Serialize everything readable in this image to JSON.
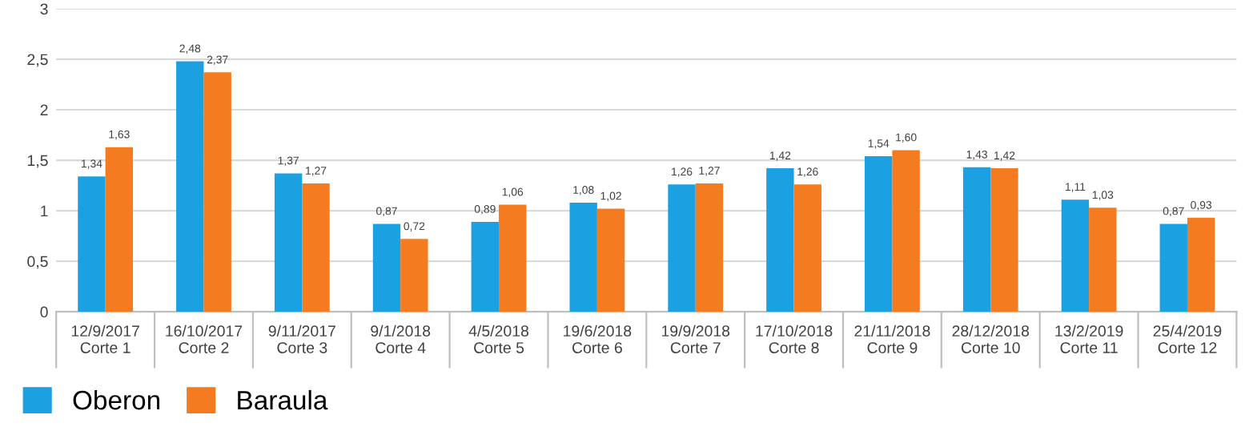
{
  "chart_data": {
    "type": "bar",
    "categories": [
      "12/9/2017\nCorte 1",
      "16/10/2017\nCorte 2",
      "9/11/2017\nCorte 3",
      "9/1/2018\nCorte 4",
      "4/5/2018\nCorte 5",
      "19/6/2018\nCorte 6",
      "19/9/2018\nCorte 7",
      "17/10/2018\nCorte 8",
      "21/11/2018\nCorte 9",
      "28/12/2018\nCorte 10",
      "13/2/2019\nCorte 11",
      "25/4/2019\nCorte 12"
    ],
    "series": [
      {
        "name": "Oberon",
        "color": "#1ba1e2",
        "values": [
          1.34,
          2.48,
          1.37,
          0.87,
          0.89,
          1.08,
          1.26,
          1.42,
          1.54,
          1.43,
          1.11,
          0.87
        ],
        "value_labels": [
          "1,34",
          "2,48",
          "1,37",
          "0,87",
          "0,89",
          "1,08",
          "1,26",
          "1,42",
          "1,54",
          "1,43",
          "1,11",
          "0,87"
        ]
      },
      {
        "name": "Baraula",
        "color": "#f47b20",
        "values": [
          1.63,
          2.37,
          1.27,
          0.72,
          1.06,
          1.02,
          1.27,
          1.26,
          1.6,
          1.42,
          1.03,
          0.93
        ],
        "value_labels": [
          "1,63",
          "2,37",
          "1,27",
          "0,72",
          "1,06",
          "1,02",
          "1,27",
          "1,26",
          "1,60",
          "1,42",
          "1,03",
          "0,93"
        ]
      }
    ],
    "ylim": [
      0,
      3
    ],
    "yticks": [
      0,
      {
        "value": 0.5,
        "label": "0,5"
      },
      1,
      {
        "value": 1.5,
        "label": "1,5"
      },
      2,
      {
        "value": 2.5,
        "label": "2,5"
      },
      3
    ],
    "grid": "y",
    "legend": "bottom left"
  }
}
